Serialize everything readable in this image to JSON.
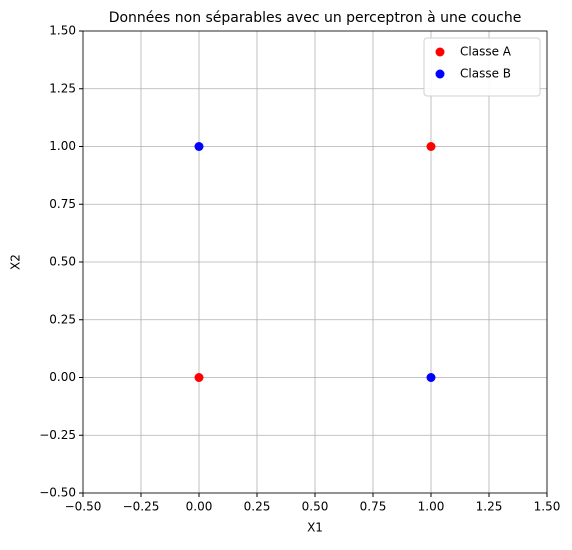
{
  "chart_data": {
    "type": "scatter",
    "title": "Données non séparables avec un perceptron à une couche",
    "xlabel": "X1",
    "ylabel": "X2",
    "series": [
      {
        "name": "Classe A",
        "color": "#ff0000",
        "x": [
          0,
          1
        ],
        "values": [
          0,
          1
        ]
      },
      {
        "name": "Classe B",
        "color": "#0000ff",
        "x": [
          0,
          1
        ],
        "values": [
          1,
          0
        ]
      }
    ],
    "xlim": [
      -0.5,
      1.5
    ],
    "ylim": [
      -0.5,
      1.5
    ],
    "xticks": [
      {
        "value": -0.5,
        "label": "−0.50"
      },
      {
        "value": -0.25,
        "label": "−0.25"
      },
      {
        "value": 0,
        "label": "0.00"
      },
      {
        "value": 0.25,
        "label": "0.25"
      },
      {
        "value": 0.5,
        "label": "0.50"
      },
      {
        "value": 0.75,
        "label": "0.75"
      },
      {
        "value": 1,
        "label": "1.00"
      },
      {
        "value": 1.25,
        "label": "1.25"
      },
      {
        "value": 1.5,
        "label": "1.50"
      }
    ],
    "yticks": [
      {
        "value": -0.5,
        "label": "−0.50"
      },
      {
        "value": -0.25,
        "label": "−0.25"
      },
      {
        "value": 0,
        "label": "0.00"
      },
      {
        "value": 0.25,
        "label": "0.25"
      },
      {
        "value": 0.5,
        "label": "0.50"
      },
      {
        "value": 0.75,
        "label": "0.75"
      },
      {
        "value": 1,
        "label": "1.00"
      },
      {
        "value": 1.25,
        "label": "1.25"
      },
      {
        "value": 1.5,
        "label": "1.50"
      }
    ],
    "grid": true,
    "legend": "upper right"
  }
}
